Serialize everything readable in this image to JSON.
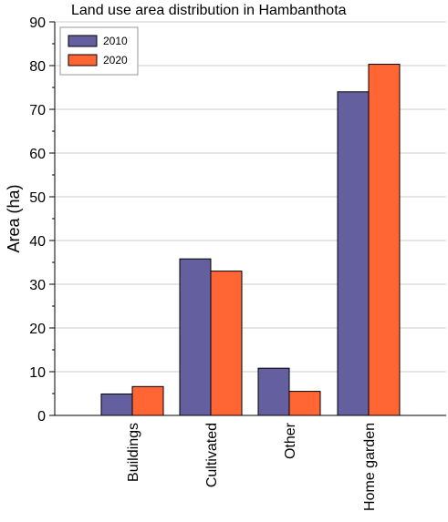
{
  "chart_data": {
    "type": "bar",
    "title": "Land use area distribution in Hambanthota",
    "xlabel": "",
    "ylabel": "Area (ha)",
    "categories": [
      "Buildings",
      "Cultivated",
      "Other",
      "Home garden"
    ],
    "series": [
      {
        "name": "2010",
        "values": [
          4.9,
          35.8,
          10.8,
          74.0
        ],
        "color": "#6460a0"
      },
      {
        "name": "2020",
        "values": [
          6.6,
          33.0,
          5.5,
          80.3
        ],
        "color": "#ff6633"
      }
    ],
    "ylim": [
      0,
      90
    ],
    "yticks": [
      0,
      10,
      20,
      30,
      40,
      50,
      60,
      70,
      80,
      90
    ],
    "grid": "horizontal",
    "legend_position": "top-left"
  }
}
